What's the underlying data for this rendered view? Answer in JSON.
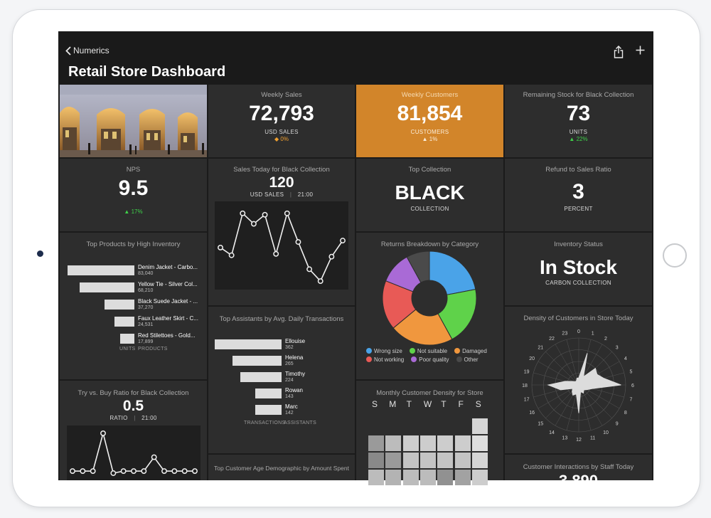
{
  "header": {
    "back_label": "Numerics",
    "title": "Retail Store Dashboard"
  },
  "tiles": {
    "weekly_sales": {
      "title": "Weekly Sales",
      "value": "72,793",
      "sub": "USD SALES",
      "delta": "◆ 0%",
      "delta_color": "#f0a030"
    },
    "weekly_customers": {
      "title": "Weekly Customers",
      "value": "81,854",
      "sub": "CUSTOMERS",
      "delta": "▲ 1%",
      "bg": "#d2852a"
    },
    "remaining_stock": {
      "title": "Remaining Stock for Black Collection",
      "value": "73",
      "sub": "UNITS",
      "delta": "▲ 22%",
      "delta_color": "#3fd14a"
    },
    "nps": {
      "title": "NPS",
      "value": "9.5",
      "delta": "▲ 17%",
      "delta_color": "#3fd14a"
    },
    "sales_today": {
      "title": "Sales Today for Black Collection",
      "value": "120",
      "sub": "USD SALES",
      "time": "21:00"
    },
    "top_collection": {
      "title": "Top Collection",
      "value": "BLACK",
      "sub": "COLLECTION"
    },
    "refund_ratio": {
      "title": "Refund to Sales Ratio",
      "value": "3",
      "sub": "PERCENT"
    },
    "top_products": {
      "title": "Top Products by High Inventory",
      "axis": [
        "UNITS",
        "PRODUCTS"
      ],
      "items": [
        {
          "name": "Denim Jacket - Carbo...",
          "value": "83,040",
          "n": 83040
        },
        {
          "name": "Yellow Tie - Silver Col...",
          "value": "68,210",
          "n": 68210
        },
        {
          "name": "Black Suede Jacket - ...",
          "value": "37,270",
          "n": 37270
        },
        {
          "name": "Faux Leather Skirt - C...",
          "value": "24,531",
          "n": 24531
        },
        {
          "name": "Red Stilettoes - Gold...",
          "value": "17,899",
          "n": 17899
        }
      ]
    },
    "returns": {
      "title": "Returns Breakdown by Category",
      "slices": [
        {
          "name": "Wrong size",
          "value": 22,
          "color": "#4aa3e8"
        },
        {
          "name": "Not suitable",
          "value": 20,
          "color": "#5fd24a"
        },
        {
          "name": "Damaged",
          "value": 22,
          "color": "#f0973e"
        },
        {
          "name": "Not working",
          "value": 17,
          "color": "#e85a56"
        },
        {
          "name": "Poor quality",
          "value": 11,
          "color": "#a96ad6"
        },
        {
          "name": "Other",
          "value": 8,
          "color": "#4a4a4a"
        }
      ]
    },
    "inventory_status": {
      "title": "Inventory Status",
      "value": "In Stock",
      "sub": "CARBON COLLECTION"
    },
    "top_assistants": {
      "title": "Top Assistants by Avg. Daily Transactions",
      "axis": [
        "TRANSACTIONS",
        "ASSISTANTS"
      ],
      "items": [
        {
          "name": "Ellouise",
          "value": "362",
          "n": 362
        },
        {
          "name": "Helena",
          "value": "265",
          "n": 265
        },
        {
          "name": "Timothy",
          "value": "224",
          "n": 224
        },
        {
          "name": "Rowan",
          "value": "143",
          "n": 143
        },
        {
          "name": "Marc",
          "value": "142",
          "n": 142
        }
      ]
    },
    "density_today": {
      "title": "Density of Customers in Store Today",
      "hours": [
        "0",
        "1",
        "2",
        "3",
        "4",
        "5",
        "6",
        "7",
        "8",
        "9",
        "10",
        "11",
        "12",
        "13",
        "14",
        "15",
        "16",
        "17",
        "18",
        "19",
        "20",
        "21",
        "22",
        "23"
      ]
    },
    "try_buy": {
      "title": "Try vs. Buy Ratio for Black Collection",
      "value": "0.5",
      "sub": "RATIO",
      "time": "21:00"
    },
    "monthly_density": {
      "title": "Monthly Customer Density for Store",
      "days": [
        "S",
        "M",
        "T",
        "W",
        "T",
        "F",
        "S"
      ]
    },
    "age_demo": {
      "title": "Top Customer Age Demographic by Amount Spent"
    },
    "interactions": {
      "title": "Customer Interactions by Staff Today",
      "value": "3,890"
    }
  },
  "chart_data": [
    {
      "type": "line",
      "title": "Sales Today for Black Collection",
      "x": [
        1,
        2,
        3,
        4,
        5,
        6,
        7,
        8,
        9,
        10,
        11,
        12
      ],
      "values": [
        5.2,
        4.1,
        10.1,
        8.6,
        9.9,
        4.3,
        10.1,
        6.0,
        2.1,
        0.4,
        3.9,
        6.2
      ]
    },
    {
      "type": "line",
      "title": "Try vs. Buy Ratio for Black Collection",
      "x": [
        1,
        2,
        3,
        4,
        5,
        6,
        7,
        8,
        9,
        10,
        11,
        12,
        13
      ],
      "values": [
        0.05,
        0.05,
        0.05,
        0.95,
        0.0,
        0.05,
        0.05,
        0.05,
        0.38,
        0.05,
        0.05,
        0.05,
        0.05
      ]
    },
    {
      "type": "pie",
      "title": "Returns Breakdown by Category",
      "categories": [
        "Wrong size",
        "Not suitable",
        "Damaged",
        "Not working",
        "Poor quality",
        "Other"
      ],
      "values": [
        22,
        20,
        22,
        17,
        11,
        8
      ]
    },
    {
      "type": "bar",
      "title": "Top Products by High Inventory",
      "categories": [
        "Denim Jacket - Carbo...",
        "Yellow Tie - Silver Col...",
        "Black Suede Jacket - ...",
        "Faux Leather Skirt - C...",
        "Red Stilettoes - Gold..."
      ],
      "values": [
        83040,
        68210,
        37270,
        24531,
        17899
      ]
    },
    {
      "type": "bar",
      "title": "Top Assistants by Avg. Daily Transactions",
      "categories": [
        "Ellouise",
        "Helena",
        "Timothy",
        "Rowan",
        "Marc"
      ],
      "values": [
        362,
        265,
        224,
        143,
        142
      ]
    },
    {
      "type": "radar",
      "title": "Density of Customers in Store Today",
      "categories": [
        "0",
        "1",
        "2",
        "3",
        "4",
        "5",
        "6",
        "7",
        "8",
        "9",
        "10",
        "11",
        "12",
        "13",
        "14",
        "15",
        "16",
        "17",
        "18",
        "19",
        "20",
        "21",
        "22",
        "23"
      ],
      "values": [
        0.15,
        0.7,
        0.2,
        0.5,
        0.45,
        0.55,
        0.9,
        0.3,
        0.2,
        0.15,
        0.2,
        0.15,
        0.6,
        0.2,
        0.25,
        0.2,
        0.15,
        0.4,
        0.65,
        0.3,
        0.15,
        0.1,
        0.1,
        0.15
      ]
    },
    {
      "type": "heatmap",
      "title": "Monthly Customer Density for Store",
      "categories": [
        "S",
        "M",
        "T",
        "W",
        "T",
        "F",
        "S"
      ],
      "values": [
        [
          null,
          null,
          null,
          null,
          null,
          null,
          0.9
        ],
        [
          0.55,
          0.75,
          0.85,
          0.85,
          0.85,
          0.85,
          0.95
        ],
        [
          0.45,
          0.55,
          0.8,
          0.8,
          0.8,
          0.8,
          0.9
        ],
        [
          0.75,
          0.7,
          0.75,
          0.75,
          0.5,
          0.6,
          0.85
        ]
      ]
    }
  ]
}
